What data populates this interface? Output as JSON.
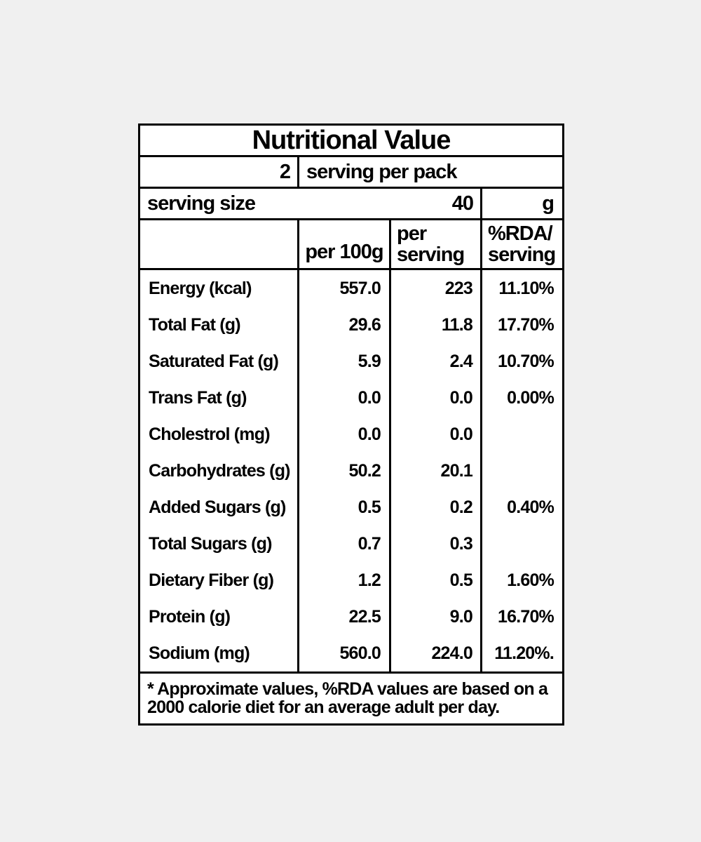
{
  "page": {
    "background_color": "#f0f0f0",
    "card_background": "#ffffff",
    "border_color": "#000000",
    "text_color": "#000000"
  },
  "label": {
    "title": "Nutritional Value",
    "servings_per_pack": {
      "count": "2",
      "text": "serving per pack"
    },
    "serving_size": {
      "text": "serving size",
      "value": "40",
      "unit": "g"
    },
    "columns": {
      "per_100g": "per 100g",
      "per_serving_line1": "per",
      "per_serving_line2": "serving",
      "rda_line1": "%RDA/",
      "rda_line2": "serving"
    },
    "rows": [
      {
        "label": "Energy (kcal)",
        "per_100g": "557.0",
        "per_serving": "223",
        "rda": "11.10%"
      },
      {
        "label": "Total Fat (g)",
        "per_100g": "29.6",
        "per_serving": "11.8",
        "rda": "17.70%"
      },
      {
        "label": "Saturated Fat (g)",
        "per_100g": "5.9",
        "per_serving": "2.4",
        "rda": "10.70%"
      },
      {
        "label": "Trans Fat (g)",
        "per_100g": "0.0",
        "per_serving": "0.0",
        "rda": "0.00%"
      },
      {
        "label": "Cholestrol (mg)",
        "per_100g": "0.0",
        "per_serving": "0.0",
        "rda": ""
      },
      {
        "label": "Carbohydrates (g)",
        "per_100g": "50.2",
        "per_serving": "20.1",
        "rda": ""
      },
      {
        "label": "Added Sugars (g)",
        "per_100g": "0.5",
        "per_serving": "0.2",
        "rda": "0.40%"
      },
      {
        "label": "Total Sugars (g)",
        "per_100g": "0.7",
        "per_serving": "0.3",
        "rda": ""
      },
      {
        "label": "Dietary Fiber (g)",
        "per_100g": "1.2",
        "per_serving": "0.5",
        "rda": "1.60%"
      },
      {
        "label": "Protein (g)",
        "per_100g": "22.5",
        "per_serving": "9.0",
        "rda": "16.70%"
      },
      {
        "label": "Sodium (mg)",
        "per_100g": "560.0",
        "per_serving": "224.0",
        "rda": "11.20%."
      }
    ],
    "footnote_line1": "* Approximate values, %RDA values are based on a",
    "footnote_line2": "2000 calorie diet for an average adult per day."
  }
}
